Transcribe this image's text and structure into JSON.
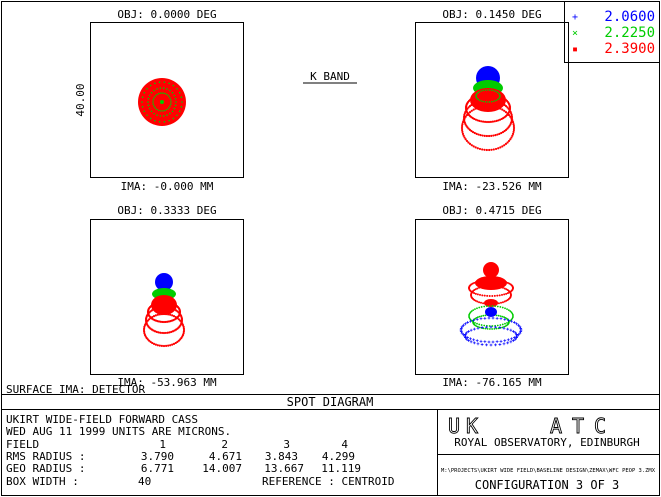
{
  "legend": [
    {
      "value": "2.0600",
      "marker": "+",
      "color": "#0000ff"
    },
    {
      "value": "2.2250",
      "marker": "×",
      "color": "#00cc00"
    },
    {
      "value": "2.3900",
      "marker": "▪",
      "color": "#ff0000"
    }
  ],
  "band_label": "K BAND",
  "box_size_label": "40.00",
  "panels": [
    {
      "obj": "OBJ: 0.0000 DEG",
      "ima": "IMA: -0.000 MM"
    },
    {
      "obj": "OBJ: 0.1450 DEG",
      "ima": "IMA: -23.526 MM"
    },
    {
      "obj": "OBJ: 0.3333 DEG",
      "ima": "IMA: -53.963 MM"
    },
    {
      "obj": "OBJ: 0.4715 DEG",
      "ima": "IMA: -76.165 MM"
    }
  ],
  "surface_label": "SURFACE IMA: DETECTOR",
  "diagram_title": "SPOT DIAGRAM",
  "info": {
    "line1": "UKIRT WIDE-FIELD FORWARD CASS",
    "line2": "WED AUG 11 1999  UNITS ARE MICRONS.",
    "field_label": "FIELD",
    "fields": [
      "1",
      "2",
      "3",
      "4"
    ],
    "rms_label": "RMS RADIUS :",
    "rms": [
      "3.790",
      "4.671",
      "3.843",
      "4.299"
    ],
    "geo_label": "GEO RADIUS :",
    "geo": [
      "6.771",
      "14.007",
      "13.667",
      "11.119"
    ],
    "box_label": "BOX WIDTH  :",
    "box_value": "40",
    "reference_label": "REFERENCE  : CENTROID"
  },
  "logo": {
    "left": "UK",
    "right": "ATC"
  },
  "org": "ROYAL OBSERVATORY, EDINBURGH",
  "file_path": "M:\\PROJECTS\\UKIRT WIDE FIELD\\BASELINE DESIGN\\ZEMAX\\WFC PEOP 3.ZMX",
  "configuration": "CONFIGURATION 3 OF 3"
}
